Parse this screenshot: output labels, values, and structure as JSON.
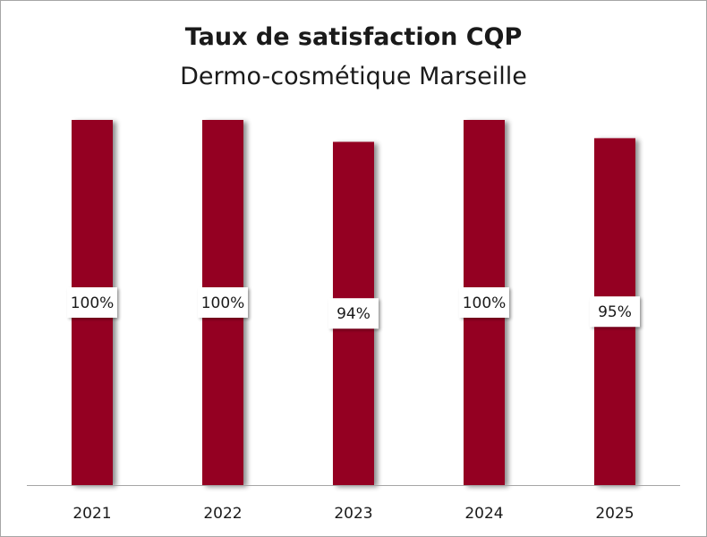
{
  "chart_data": {
    "type": "bar",
    "title": "Taux de satisfaction CQP",
    "subtitle": "Dermo-cosmétique Marseille",
    "categories": [
      "2021",
      "2022",
      "2023",
      "2024",
      "2025"
    ],
    "values": [
      100,
      100,
      94,
      100,
      95
    ],
    "data_labels": [
      "100%",
      "100%",
      "94%",
      "100%",
      "95%"
    ],
    "ylim": [
      0,
      100
    ],
    "grid": false,
    "legend": "none",
    "bar_color": "#940022",
    "axis_color": "#a6a6a6"
  }
}
